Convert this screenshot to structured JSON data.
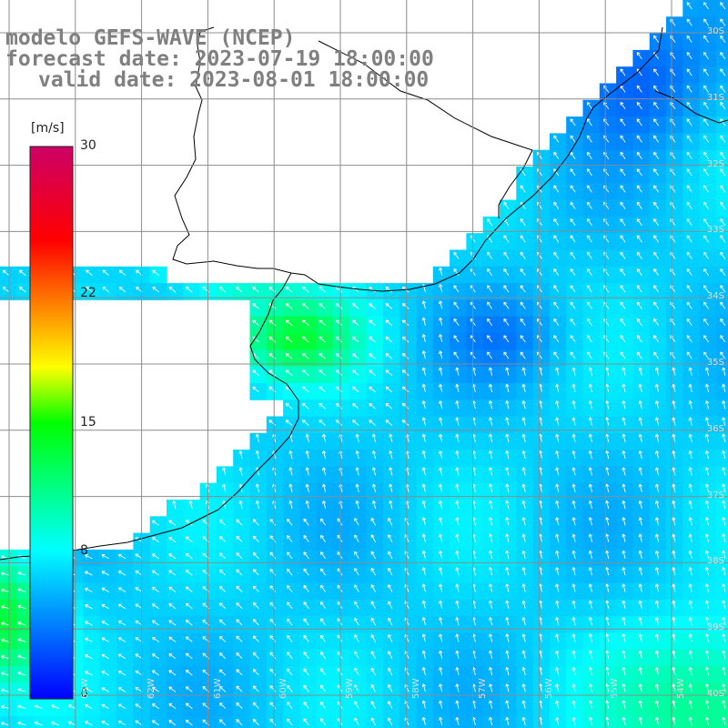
{
  "header": {
    "line1": "modelo GEFS-WAVE (NCEP)",
    "line2": "forecast date: 2023-07-19 18:00:00",
    "line3": "valid date: 2023-08-01 18:00:00"
  },
  "colorbar": {
    "unit": "[m/s]",
    "ticks": [
      "30",
      "22",
      "15",
      "8",
      "0"
    ],
    "tick_values": [
      30,
      22,
      15,
      8,
      0
    ],
    "range": [
      0,
      30
    ],
    "stops": [
      "#0000ff",
      "#00ffff",
      "#00ff00",
      "#ffff00",
      "#ff0000",
      "#cc0066"
    ]
  },
  "map": {
    "variable": "wind speed",
    "unit": "m/s",
    "lat_labels": [
      "30S",
      "31S",
      "32S",
      "33S",
      "34S",
      "35S",
      "36S",
      "37S",
      "38S",
      "39S",
      "40S"
    ],
    "lon_labels": [
      "63W",
      "62W",
      "61W",
      "60W",
      "59W",
      "58W",
      "57W",
      "56W",
      "55W",
      "54W"
    ]
  },
  "colors": {
    "land": "#ffffff",
    "coast": "#000000",
    "grid": "#8c8c8c",
    "arrows": "#ffffff",
    "title": "#808080"
  }
}
